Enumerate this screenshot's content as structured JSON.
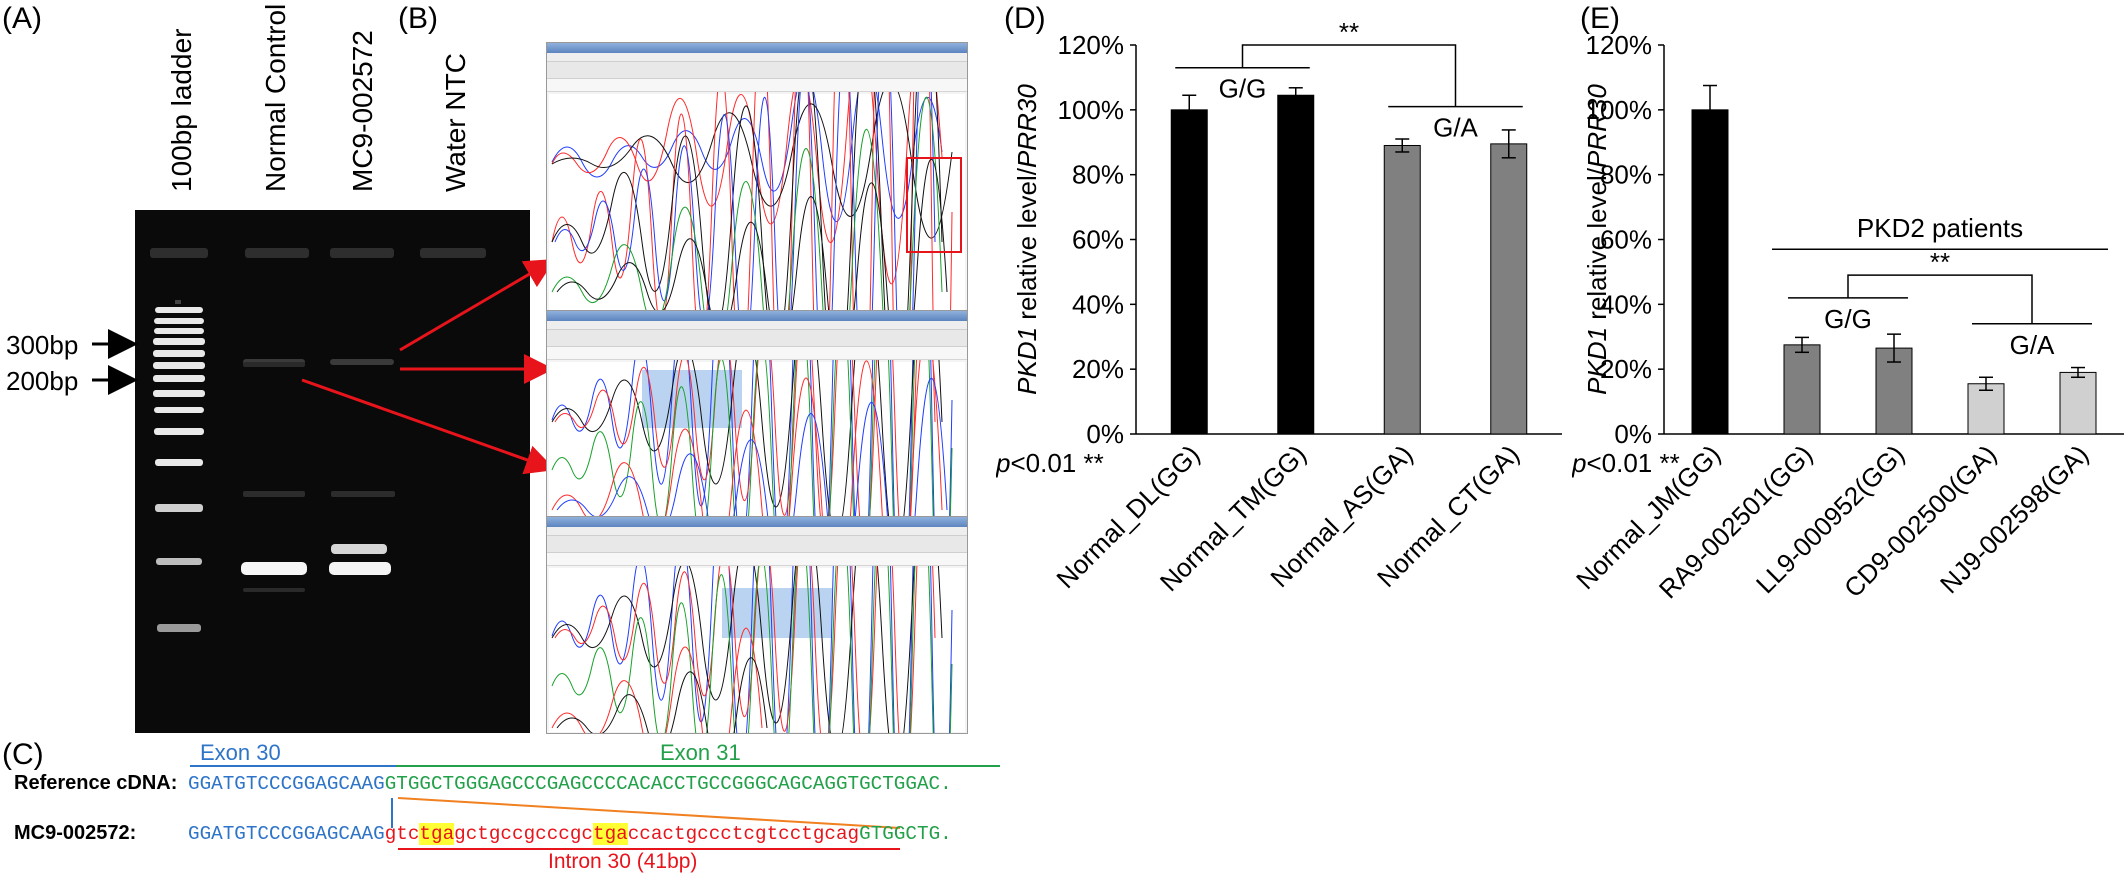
{
  "panels": {
    "a": "(A)",
    "b": "(B)",
    "c": "(C)",
    "d": "(D)",
    "e": "(E)"
  },
  "gel": {
    "lanes": [
      "100bp ladder",
      "Normal Control",
      "MC9-002572",
      "Water NTC"
    ],
    "markers": [
      "300bp",
      "200bp"
    ]
  },
  "sequence": {
    "exon30_label": "Exon 30",
    "exon31_label": "Exon 31",
    "intron_label": "Intron 30 (41bp)",
    "ref_label": "Reference cDNA:",
    "mut_label": "MC9-002572:",
    "ref_exon30": "GGATGTCCCGGAGCAAG",
    "ref_exon31": "GTGGCTGGGAGCCCGAGCCCCACACCTGCCGGGCAGCAGGTGCTGGAC.",
    "mut_exon30": "GGATGTCCCGGAGCAAG",
    "mut_intron_parts": [
      "gtc",
      "tga",
      "gctgccgcccgc",
      "tga",
      "ccactgccctcgtcctgcag"
    ],
    "mut_exon31": "GTGGCTG."
  },
  "colors": {
    "black_bar": "#000000",
    "dark_gray_bar": "#808080",
    "light_gray_bar": "#d0d0d0",
    "arrow_red": "#e8141b",
    "exon30_blue": "#2e74c8",
    "exon31_green": "#22a04a",
    "intron_red": "#e8141b",
    "stop_highlight": "#ffff33"
  },
  "chart_data": [
    {
      "type": "bar",
      "panel": "(D)",
      "categories": [
        "Normal_DL(GG)",
        "Normal_TM(GG)",
        "Normal_AS(GA)",
        "Normal_CT(GA)"
      ],
      "values": [
        100,
        104.5,
        89,
        89.5
      ],
      "errors": [
        4.5,
        2.3,
        2,
        4.3
      ],
      "bar_colors": [
        "#000000",
        "#000000",
        "#808080",
        "#808080"
      ],
      "yticks": [
        "0%",
        "20%",
        "40%",
        "60%",
        "80%",
        "100%",
        "120%"
      ],
      "ylabel_italic": "PKD1",
      "ylabel_rest": " relative level/",
      "ylabel_italic2": "PRR30",
      "ylim": [
        0,
        120
      ],
      "footnote": "p<0.01 **",
      "annotations": {
        "group1": "G/G",
        "group2": "G/A",
        "significance": "**"
      }
    },
    {
      "type": "bar",
      "panel": "(E)",
      "categories": [
        "Normal_JM(GG)",
        "RA9-002501(GG)",
        "LL9-000952(GG)",
        "CD9-002500(GA)",
        "NJ9-002598(GA)"
      ],
      "values": [
        100,
        27.5,
        26.5,
        15.5,
        19
      ],
      "errors": [
        7.5,
        2.3,
        4.3,
        2,
        1.5
      ],
      "bar_colors": [
        "#000000",
        "#808080",
        "#808080",
        "#d0d0d0",
        "#d0d0d0"
      ],
      "yticks": [
        "0%",
        "20%",
        "40%",
        "60%",
        "80%",
        "100%",
        "120%"
      ],
      "ylabel_italic": "PKD1",
      "ylabel_rest": " relative level/",
      "ylabel_italic2": "PRR30",
      "ylim": [
        0,
        120
      ],
      "footnote": "p<0.01 **",
      "annotations": {
        "patients": "PKD2 patients",
        "group1": "G/G",
        "group2": "G/A",
        "significance": "**"
      }
    }
  ]
}
